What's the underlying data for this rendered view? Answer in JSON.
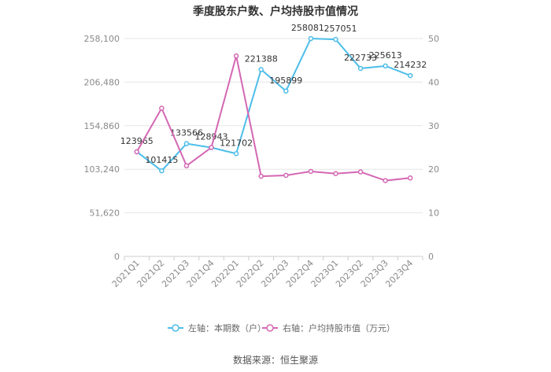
{
  "chart_data": {
    "type": "line",
    "title": "季度股东户数、户均持股市值情况",
    "categories": [
      "2021Q1",
      "2021Q2",
      "2021Q3",
      "2021Q4",
      "2022Q1",
      "2022Q2",
      "2022Q3",
      "2022Q4",
      "2023Q1",
      "2023Q2",
      "2023Q3",
      "2023Q4"
    ],
    "y_left": {
      "ticks": [
        "0",
        "51,620",
        "103,240",
        "154,860",
        "206,480",
        "258,100"
      ],
      "range": [
        0,
        258100
      ]
    },
    "y_right": {
      "ticks": [
        "0",
        "10",
        "20",
        "30",
        "40",
        "50"
      ],
      "range": [
        0,
        50
      ]
    },
    "series": [
      {
        "name": "左轴：本期数（户）",
        "axis": "left",
        "color": "#4dbde9",
        "values": [
          123965,
          101415,
          133566,
          128943,
          121702,
          221388,
          195899,
          258081,
          257051,
          222733,
          225613,
          214232
        ],
        "labels": [
          "123965",
          "101415",
          "133566",
          "128943",
          "121702",
          "221388",
          "195899",
          "258081",
          "257051",
          "222733",
          "225613",
          "214232"
        ]
      },
      {
        "name": "右轴：户均持股市值（万元）",
        "axis": "right",
        "color": "#d467b3",
        "values": [
          24.0,
          34.0,
          20.8,
          25.0,
          46.0,
          18.4,
          18.6,
          19.5,
          19.0,
          19.4,
          17.4,
          18.0
        ]
      }
    ],
    "grid": "horizontal",
    "legend_position": "bottom"
  },
  "source": "数据来源：恒生聚源"
}
